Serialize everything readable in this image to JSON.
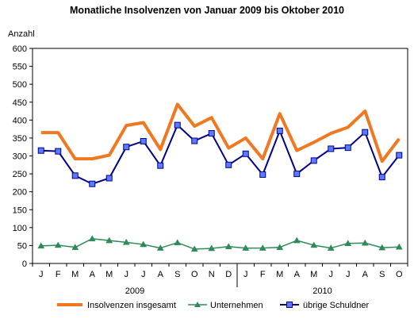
{
  "chart_data": {
    "type": "line",
    "title": "Monatliche Insolvenzen von Januar 2009 bis Oktober 2010",
    "ylabel": "Anzahl",
    "xlabel": "",
    "ylim": [
      0,
      600
    ],
    "yticks": [
      0,
      50,
      100,
      150,
      200,
      250,
      300,
      350,
      400,
      450,
      500,
      550,
      600
    ],
    "grid": false,
    "legend_position": "bottom",
    "categories": [
      "J",
      "F",
      "M",
      "A",
      "M",
      "J",
      "J",
      "A",
      "S",
      "O",
      "N",
      "D",
      "J",
      "F",
      "M",
      "A",
      "M",
      "J",
      "J",
      "A",
      "S",
      "O"
    ],
    "years": [
      {
        "label": "2009",
        "start": 0,
        "end": 11
      },
      {
        "label": "2010",
        "start": 12,
        "end": 21
      }
    ],
    "series": [
      {
        "name": "Insolvenzen insgesamt",
        "color": "#f07820",
        "marker": "none",
        "values": [
          365,
          365,
          292,
          292,
          302,
          385,
          393,
          318,
          444,
          383,
          407,
          322,
          350,
          292,
          418,
          315,
          338,
          363,
          380,
          425,
          285,
          348
        ]
      },
      {
        "name": "Unternehmen",
        "color": "#2e8b57",
        "marker": "triangle",
        "values": [
          49,
          51,
          45,
          69,
          64,
          59,
          53,
          43,
          58,
          40,
          42,
          47,
          43,
          43,
          45,
          64,
          51,
          43,
          56,
          57,
          44,
          46
        ]
      },
      {
        "name": "übrige Schuldner",
        "color": "#00008b",
        "marker": "square",
        "values": [
          315,
          313,
          245,
          222,
          238,
          325,
          341,
          273,
          386,
          342,
          363,
          275,
          306,
          248,
          370,
          250,
          287,
          320,
          323,
          366,
          241,
          302
        ]
      }
    ]
  }
}
